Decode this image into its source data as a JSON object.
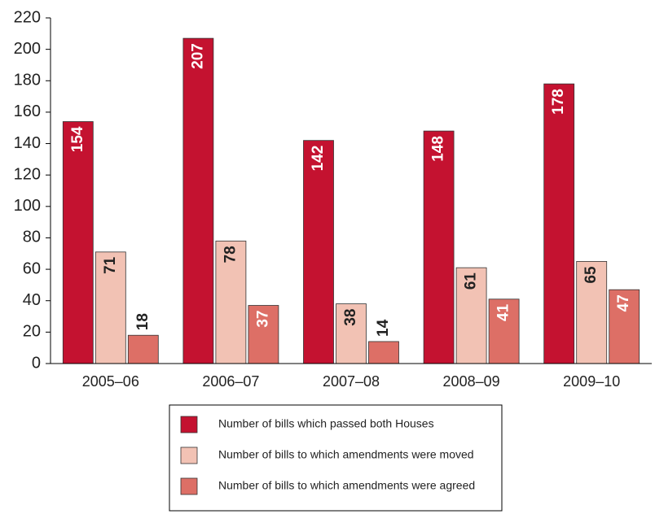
{
  "chart_data": {
    "type": "bar",
    "categories": [
      "2005–06",
      "2006–07",
      "2007–08",
      "2008–09",
      "2009–10"
    ],
    "series": [
      {
        "name": "Number of bills which passed both Houses",
        "color": "#c41230",
        "values": [
          154,
          207,
          142,
          148,
          178
        ]
      },
      {
        "name": "Number of bills to which amendments were moved",
        "color": "#f2c2b4",
        "values": [
          71,
          78,
          38,
          61,
          65
        ]
      },
      {
        "name": "Number of bills to which amendments were agreed",
        "color": "#dd6f66",
        "values": [
          18,
          37,
          14,
          41,
          47
        ]
      }
    ],
    "ylim": [
      0,
      220
    ],
    "yticks": [
      0,
      20,
      40,
      60,
      80,
      100,
      120,
      140,
      160,
      180,
      200,
      220
    ],
    "legend": "bottom"
  }
}
